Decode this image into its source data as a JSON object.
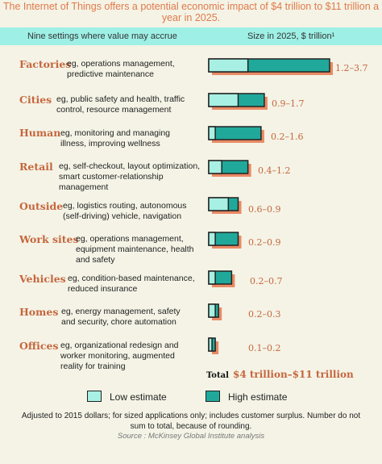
{
  "title": "The Internet of Things offers a potential economic impact of $4 trillion to $11 trillion a year in 2025.",
  "header": {
    "left": "Nine settings where value may accrue",
    "right": "Size in 2025, $ trillion¹"
  },
  "chart_data": {
    "type": "bar",
    "categories": [
      "Factories",
      "Cities",
      "Human",
      "Retail",
      "Outside",
      "Work sites",
      "Vehicles",
      "Homes",
      "Offices"
    ],
    "descriptions": [
      "eg, operations management, predictive maintenance",
      "eg, public safety and health, traffic control, resource management",
      "eg, monitoring and managing illness, improving wellness",
      "eg, self-checkout, layout optimization, smart customer-relationship management",
      "eg, logistics routing, autonomous (self-driving) vehicle, navigation",
      "eg, operations management, equipment maintenance, health and safety",
      "eg, condition-based maintenance, reduced insurance",
      "eg, energy management, safety and security, chore automation",
      "eg, organizational redesign and worker monitoring, augmented reality for training"
    ],
    "range_labels": [
      "1.2–3.7",
      "0.9–1.7",
      "0.2–1.6",
      "0.4–1.2",
      "0.6–0.9",
      "0.2–0.9",
      "0.2–0.7",
      "0.2–0.3",
      "0.1–0.2"
    ],
    "series": [
      {
        "name": "Low estimate",
        "values": [
          1.2,
          0.9,
          0.2,
          0.4,
          0.6,
          0.2,
          0.2,
          0.2,
          0.1
        ]
      },
      {
        "name": "High estimate",
        "values": [
          3.7,
          1.7,
          1.6,
          1.2,
          0.9,
          0.9,
          0.7,
          0.3,
          0.2
        ]
      }
    ],
    "colors": {
      "low": "#a7f0e3",
      "high": "#20a99b",
      "shadow": "#e98a64",
      "label": "#c6663d"
    },
    "total_label": "Total",
    "total_value": "$4 trillion–$11 trillion",
    "xlim": [
      0,
      3.7
    ]
  },
  "legend": {
    "low": "Low estimate",
    "high": "High estimate"
  },
  "footnote": "Adjusted to 2015 dollars; for sized applications only; includes customer surplus. Number do not sum to total, because of rounding.",
  "source": "Source : McKinsey Global Institute analysis"
}
